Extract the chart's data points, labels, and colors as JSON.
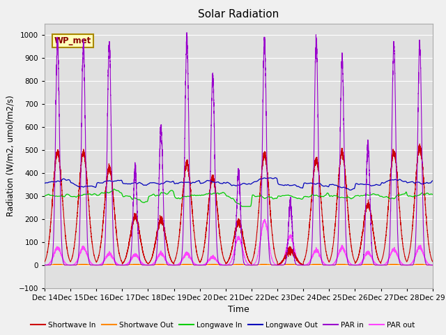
{
  "title": "Solar Radiation",
  "xlabel": "Time",
  "ylabel": "Radiation (W/m2, umol/m2/s)",
  "ylim": [
    -100,
    1050
  ],
  "yticks": [
    -100,
    0,
    100,
    200,
    300,
    400,
    500,
    600,
    700,
    800,
    900,
    1000
  ],
  "x_labels": [
    "Dec 14",
    "Dec 15",
    "Dec 16",
    "Dec 17",
    "Dec 18",
    "Dec 19",
    "Dec 20",
    "Dec 21",
    "Dec 22",
    "Dec 23",
    "Dec 24",
    "Dec 25",
    "Dec 26",
    "Dec 27",
    "Dec 28",
    "Dec 29"
  ],
  "annotation_text": "WP_met",
  "colors": {
    "shortwave_in": "#cc0000",
    "shortwave_out": "#ff8800",
    "longwave_in": "#00cc00",
    "longwave_out": "#0000bb",
    "par_in": "#9900cc",
    "par_out": "#ff44ff"
  },
  "legend": [
    {
      "label": "Shortwave In",
      "color": "#cc0000"
    },
    {
      "label": "Shortwave Out",
      "color": "#ff8800"
    },
    {
      "label": "Longwave In",
      "color": "#00cc00"
    },
    {
      "label": "Longwave Out",
      "color": "#0000bb"
    },
    {
      "label": "PAR in",
      "color": "#9900cc"
    },
    {
      "label": "PAR out",
      "color": "#ff44ff"
    }
  ],
  "fig_bg": "#f0f0f0",
  "ax_bg": "#e0e0e0",
  "grid_color": "#ffffff"
}
